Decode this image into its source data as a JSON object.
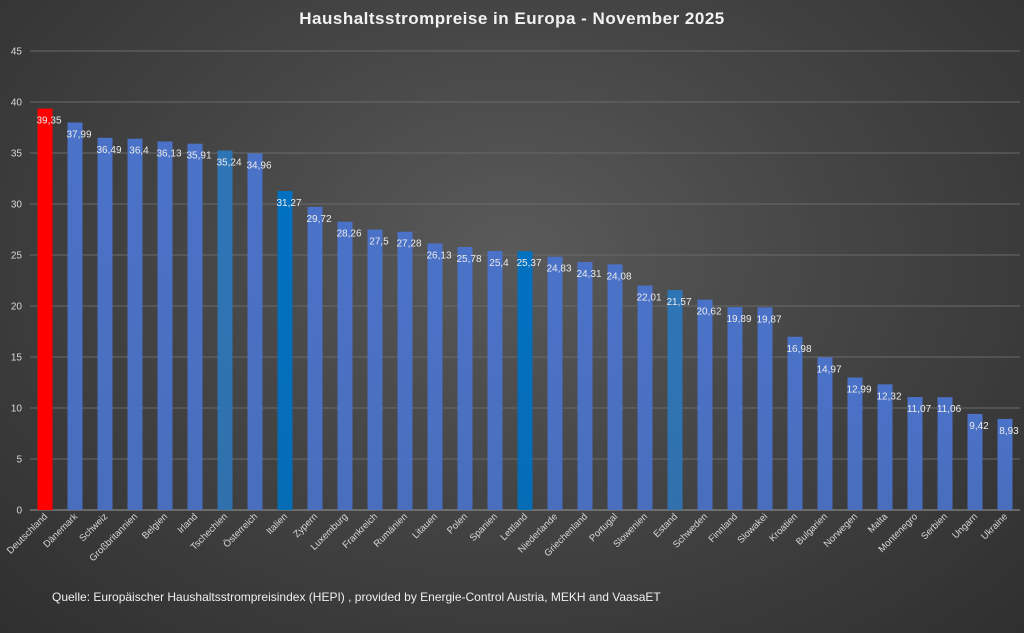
{
  "chart_data": {
    "type": "bar",
    "title": "Haushaltsstrompreise in Europa - November 2025",
    "xlabel": "",
    "ylabel": "",
    "ylim": [
      0,
      45
    ],
    "yticks": [
      "0",
      "5",
      "10",
      "15",
      "20",
      "25",
      "30",
      "35",
      "40",
      "45"
    ],
    "grid": true,
    "categories": [
      "Deutschland",
      "Dänemark",
      "Schweiz",
      "Großbritannien",
      "Belgien",
      "Irland",
      "Tschechien",
      "Österreich",
      "Italien",
      "Zypern",
      "Luxemburg",
      "Frankreich",
      "Rumänien",
      "Litauen",
      "Polen",
      "Spanien",
      "Lettland",
      "Niederlande",
      "Griechenland",
      "Portugal",
      "Slowenien",
      "Estand",
      "Schweden",
      "Finnland",
      "Slowakei",
      "Kroatien",
      "Bulgarien",
      "Norwegen",
      "Malta",
      "Montenegro",
      "Serbien",
      "Ungarn",
      "Ukraine"
    ],
    "values": [
      39.35,
      37.99,
      36.49,
      36.4,
      36.13,
      35.91,
      35.24,
      34.96,
      31.27,
      29.72,
      28.26,
      27.5,
      27.28,
      26.13,
      25.78,
      25.4,
      25.37,
      24.83,
      24.31,
      24.08,
      22.01,
      21.57,
      20.62,
      19.89,
      19.87,
      16.98,
      14.97,
      12.99,
      12.32,
      11.07,
      11.06,
      9.42,
      8.93
    ],
    "value_labels": [
      "39,35",
      "37,99",
      "36,49",
      "36,4",
      "36,13",
      "35,91",
      "35,24",
      "34,96",
      "31,27",
      "29,72",
      "28,26",
      "27,5",
      "27,28",
      "26,13",
      "25,78",
      "25,4",
      "25,37",
      "24,83",
      "24,31",
      "24,08",
      "22,01",
      "21,57",
      "20,62",
      "19,89",
      "19,87",
      "16,98",
      "14,97",
      "12,99",
      "12,32",
      "11,07",
      "11,06",
      "9,42",
      "8,93"
    ],
    "bar_colors": [
      "#ff0000",
      "#4a72c8",
      "#4a72c8",
      "#4a72c8",
      "#4a72c8",
      "#4a72c8",
      "#2e75b6",
      "#4a72c8",
      "#0070c0",
      "#4a72c8",
      "#4a72c8",
      "#4a72c8",
      "#4a72c8",
      "#4a72c8",
      "#4a72c8",
      "#4a72c8",
      "#0070c0",
      "#4a72c8",
      "#4a72c8",
      "#4a72c8",
      "#4a72c8",
      "#2e75b6",
      "#4a72c8",
      "#4a72c8",
      "#4a72c8",
      "#4a72c8",
      "#4a72c8",
      "#4a72c8",
      "#4a72c8",
      "#4a72c8",
      "#4a72c8",
      "#4a72c8",
      "#4a72c8"
    ]
  },
  "source_note": "Quelle:  Europäischer Haushaltsstrompreisindex (HEPI) , provided by  Energie-Control Austria, MEKH and VaasaET",
  "colors": {
    "grid": "#6a6a6a",
    "axis": "#9a9a9a"
  }
}
